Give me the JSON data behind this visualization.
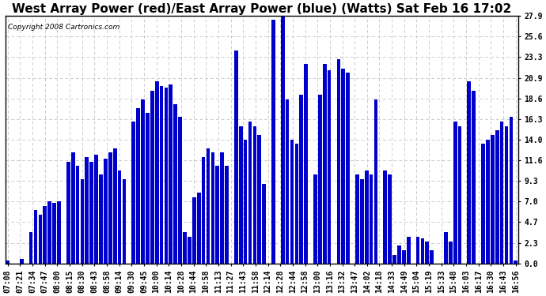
{
  "title": "West Array Power (red)/East Array Power (blue) (Watts) Sat Feb 16 17:02",
  "copyright": "Copyright 2008 Cartronics.com",
  "bar_color": "#0000cc",
  "background_color": "#ffffff",
  "plot_bg_color": "#ffffff",
  "ylim": [
    0.0,
    27.9
  ],
  "yticks": [
    0.0,
    2.3,
    4.7,
    7.0,
    9.3,
    11.6,
    14.0,
    16.3,
    18.6,
    20.9,
    23.3,
    25.6,
    27.9
  ],
  "xtick_labels": [
    "07:08",
    "07:21",
    "07:34",
    "07:47",
    "08:00",
    "08:15",
    "08:30",
    "08:43",
    "08:58",
    "09:14",
    "09:30",
    "09:45",
    "10:00",
    "10:14",
    "10:28",
    "10:44",
    "10:58",
    "11:13",
    "11:27",
    "11:43",
    "11:58",
    "12:14",
    "12:28",
    "12:44",
    "12:58",
    "13:00",
    "13:16",
    "13:32",
    "13:47",
    "14:02",
    "14:18",
    "14:33",
    "14:49",
    "15:04",
    "15:19",
    "15:33",
    "15:48",
    "16:03",
    "16:17",
    "16:30",
    "16:43",
    "16:56"
  ],
  "bar_heights": [
    0.3,
    0.0,
    0.0,
    0.5,
    0.0,
    3.5,
    6.0,
    5.5,
    6.5,
    7.0,
    6.8,
    7.0,
    0.0,
    11.5,
    12.5,
    11.0,
    9.5,
    12.0,
    11.5,
    12.3,
    10.0,
    11.8,
    12.5,
    13.0,
    10.5,
    9.5,
    0.0,
    16.0,
    17.5,
    18.5,
    17.0,
    19.5,
    20.5,
    20.0,
    19.8,
    20.2,
    18.0,
    16.5,
    3.5,
    3.0,
    7.5,
    8.0,
    12.0,
    13.0,
    12.5,
    11.0,
    12.5,
    11.0,
    0.0,
    24.0,
    15.5,
    14.0,
    16.0,
    15.5,
    14.5,
    9.0,
    0.0,
    27.5,
    0.0,
    27.9,
    18.5,
    14.0,
    13.5,
    19.0,
    22.5,
    0.0,
    10.0,
    19.0,
    22.5,
    21.8,
    0.0,
    23.0,
    22.0,
    21.5,
    0.0,
    10.0,
    9.5,
    10.5,
    10.0,
    18.5,
    0.0,
    10.5,
    10.0,
    1.0,
    2.0,
    1.5,
    3.0,
    0.0,
    3.0,
    2.8,
    2.5,
    1.5,
    0.0,
    0.0,
    3.5,
    2.5,
    16.0,
    15.5,
    0.0,
    20.5,
    19.5,
    0.0,
    13.5,
    14.0,
    14.5,
    15.0,
    16.0,
    15.5,
    16.5,
    0.3
  ],
  "grid_color": "#cccccc",
  "grid_linestyle": "--",
  "title_fontsize": 11,
  "tick_fontsize": 7,
  "bar_width": 0.8
}
